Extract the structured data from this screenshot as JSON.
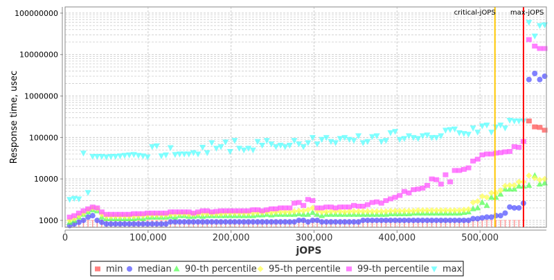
{
  "chart_data": {
    "type": "scatter",
    "title": "",
    "xlabel": "jOPS",
    "ylabel": "Response time, usec",
    "xlim": [
      0,
      580000
    ],
    "ylim": [
      680,
      141000000
    ],
    "yscale": "log",
    "grid": true,
    "legend_placement": "bottom",
    "x_ticks": [
      "0",
      "100,000",
      "200,000",
      "300,000",
      "400,000",
      "500,000"
    ],
    "x_tick_values": [
      0,
      100000,
      200000,
      300000,
      400000,
      500000
    ],
    "y_ticks": [
      "1000",
      "10000",
      "100000",
      "1000000",
      "10000000",
      "100000000"
    ],
    "y_tick_values": [
      1000,
      10000,
      100000,
      1000000,
      10000000,
      100000000
    ],
    "markers": [
      {
        "label": "critical-jOPS",
        "x": 518000,
        "color": "#ffc800"
      },
      {
        "label": "max-jOPS",
        "x": 552400,
        "color": "#ff0000"
      }
    ],
    "x": [
      5524,
      11048,
      16572,
      22096,
      27620,
      33144,
      38668,
      44192,
      49716,
      55240,
      60764,
      66288,
      71812,
      77336,
      82860,
      88384,
      93908,
      99432,
      104956,
      110480,
      116004,
      121528,
      127052,
      132576,
      138100,
      143624,
      149148,
      154672,
      160196,
      165720,
      171244,
      176768,
      182292,
      187816,
      193340,
      198864,
      204388,
      209912,
      215436,
      220960,
      226484,
      232008,
      237532,
      243056,
      248580,
      254104,
      259628,
      265152,
      270676,
      276200,
      281724,
      287248,
      292772,
      298296,
      303820,
      309344,
      314868,
      320392,
      325916,
      331440,
      336964,
      342488,
      348012,
      353536,
      359060,
      364584,
      370108,
      375632,
      381156,
      386680,
      392204,
      397728,
      403252,
      408776,
      414300,
      419824,
      425348,
      430872,
      436396,
      441920,
      447444,
      452968,
      458492,
      464016,
      469540,
      475064,
      480588,
      486112,
      491636,
      497160,
      502684,
      508208,
      513732,
      519256,
      524780,
      530304,
      535828,
      541352,
      546876,
      552400,
      559000,
      566000,
      572000,
      578000
    ],
    "series": [
      {
        "name": "min",
        "color": "#ff5555",
        "shape": "square",
        "values": [
          null,
          null,
          null,
          null,
          null,
          null,
          null,
          null,
          null,
          null,
          null,
          null,
          null,
          null,
          null,
          null,
          null,
          null,
          null,
          null,
          null,
          null,
          null,
          null,
          null,
          null,
          null,
          null,
          null,
          null,
          null,
          null,
          null,
          null,
          null,
          null,
          null,
          null,
          null,
          null,
          null,
          null,
          null,
          null,
          null,
          null,
          null,
          null,
          null,
          null,
          null,
          null,
          null,
          null,
          null,
          null,
          null,
          null,
          null,
          null,
          null,
          null,
          null,
          null,
          null,
          null,
          null,
          null,
          null,
          null,
          null,
          null,
          null,
          null,
          null,
          null,
          null,
          null,
          null,
          null,
          null,
          null,
          null,
          null,
          null,
          null,
          null,
          null,
          null,
          null,
          null,
          null,
          null,
          null,
          null,
          null,
          null,
          null,
          null,
          null,
          250000,
          180000,
          175000,
          150000
        ]
      },
      {
        "name": "median",
        "color": "#5555ff",
        "shape": "circle",
        "values": [
          750,
          820,
          900,
          1000,
          1200,
          1300,
          1000,
          900,
          820,
          820,
          820,
          820,
          820,
          820,
          820,
          820,
          820,
          820,
          820,
          820,
          820,
          820,
          920,
          920,
          920,
          920,
          920,
          920,
          920,
          920,
          920,
          920,
          920,
          920,
          920,
          920,
          920,
          920,
          920,
          920,
          920,
          920,
          920,
          920,
          920,
          920,
          920,
          920,
          920,
          920,
          1000,
          1000,
          920,
          1000,
          1000,
          920,
          920,
          920,
          920,
          920,
          920,
          920,
          920,
          920,
          1000,
          1000,
          1000,
          1000,
          1000,
          1000,
          1000,
          1000,
          1000,
          1000,
          1000,
          1000,
          1000,
          1000,
          1000,
          1000,
          1000,
          1000,
          1000,
          1000,
          1000,
          1000,
          1000,
          1000,
          1100,
          1100,
          1150,
          1200,
          1200,
          1300,
          1300,
          1500,
          2100,
          2000,
          2000,
          2600,
          2500000,
          3500000,
          2500000,
          3000000
        ]
      },
      {
        "name": "90-th percentile",
        "color": "#55ff55",
        "shape": "triangle-up",
        "values": [
          900,
          1000,
          1200,
          1400,
          1600,
          1800,
          1700,
          1200,
          1100,
          1100,
          1100,
          1100,
          1100,
          1100,
          1100,
          1150,
          1100,
          1200,
          1200,
          1200,
          1200,
          1200,
          1250,
          1200,
          1300,
          1300,
          1250,
          1250,
          1300,
          1250,
          1300,
          1300,
          1300,
          1300,
          1300,
          1300,
          1300,
          1300,
          1300,
          1300,
          1300,
          1350,
          1350,
          1400,
          1350,
          1400,
          1400,
          1400,
          1400,
          1400,
          1450,
          1400,
          1400,
          1550,
          1400,
          1300,
          1400,
          1400,
          1400,
          1400,
          1400,
          1400,
          1400,
          1400,
          1400,
          1400,
          1400,
          1400,
          1400,
          1400,
          1450,
          1450,
          1450,
          1450,
          1450,
          1500,
          1500,
          1500,
          1500,
          1500,
          1500,
          1500,
          1500,
          1500,
          1500,
          1500,
          1550,
          1600,
          1900,
          2000,
          2700,
          2300,
          3600,
          3600,
          4300,
          5700,
          5700,
          5700,
          6700,
          6700,
          7000,
          12000,
          7500,
          8000
        ]
      },
      {
        "name": "95-th percentile",
        "color": "#ffff55",
        "shape": "diamond",
        "values": [
          1000,
          1100,
          1300,
          1500,
          1800,
          2000,
          1900,
          1400,
          1250,
          1250,
          1250,
          1250,
          1250,
          1250,
          1250,
          1300,
          1300,
          1350,
          1350,
          1350,
          1350,
          1350,
          1400,
          1400,
          1450,
          1450,
          1400,
          1400,
          1450,
          1450,
          1450,
          1450,
          1450,
          1450,
          1500,
          1500,
          1500,
          1500,
          1500,
          1500,
          1500,
          1550,
          1550,
          1600,
          1550,
          1600,
          1600,
          1600,
          1600,
          1650,
          1700,
          1700,
          1800,
          2000,
          1700,
          1600,
          1600,
          1650,
          1650,
          1650,
          1600,
          1650,
          1650,
          1650,
          1650,
          1650,
          1650,
          1650,
          1650,
          1650,
          1700,
          1700,
          1700,
          1700,
          1700,
          1700,
          1750,
          1750,
          1750,
          1750,
          1750,
          1750,
          1750,
          1750,
          1750,
          1750,
          1800,
          1850,
          2700,
          2900,
          3800,
          3600,
          4600,
          4600,
          5300,
          6800,
          7000,
          7000,
          8500,
          8500,
          12000,
          10500,
          9500,
          10000
        ]
      },
      {
        "name": "99-th percentile",
        "color": "#ff55ff",
        "shape": "square",
        "values": [
          1200,
          1300,
          1500,
          1700,
          1900,
          2100,
          2000,
          1600,
          1400,
          1400,
          1400,
          1400,
          1400,
          1400,
          1450,
          1450,
          1450,
          1500,
          1500,
          1500,
          1500,
          1500,
          1600,
          1600,
          1600,
          1600,
          1600,
          1500,
          1600,
          1700,
          1700,
          1600,
          1650,
          1700,
          1700,
          1700,
          1700,
          1700,
          1700,
          1700,
          1800,
          1800,
          1700,
          1800,
          1900,
          1900,
          2000,
          2000,
          2000,
          2600,
          2700,
          2300,
          3200,
          3000,
          2000,
          2000,
          2100,
          2100,
          2000,
          2100,
          2100,
          2100,
          2300,
          2200,
          2200,
          2400,
          2700,
          2800,
          2600,
          3000,
          3300,
          3600,
          4000,
          5000,
          4600,
          5500,
          5700,
          6000,
          7000,
          10000,
          9600,
          7500,
          12600,
          8500,
          16000,
          16000,
          17000,
          18500,
          27000,
          30000,
          38000,
          40000,
          40000,
          42000,
          43000,
          45000,
          46000,
          60000,
          58000,
          80000,
          23000000,
          16000000,
          14000000,
          14000000
        ]
      },
      {
        "name": "max",
        "color": "#55ffff",
        "shape": "triangle-down",
        "values": [
          3200,
          3400,
          3300,
          42000,
          4700,
          35000,
          35000,
          35000,
          34000,
          35000,
          35000,
          36000,
          37000,
          38000,
          39000,
          37000,
          36000,
          34000,
          60000,
          63000,
          36000,
          38000,
          57000,
          39000,
          40000,
          40000,
          40000,
          43000,
          40000,
          58000,
          43000,
          75000,
          55000,
          60000,
          78000,
          46000,
          85000,
          55000,
          50000,
          55000,
          50000,
          80000,
          65000,
          85000,
          70000,
          60000,
          65000,
          60000,
          65000,
          85000,
          70000,
          60000,
          75000,
          100000,
          70000,
          90000,
          100000,
          80000,
          75000,
          95000,
          100000,
          90000,
          85000,
          110000,
          75000,
          80000,
          105000,
          110000,
          80000,
          85000,
          130000,
          140000,
          90000,
          95000,
          110000,
          100000,
          95000,
          110000,
          115000,
          100000,
          100000,
          110000,
          150000,
          155000,
          160000,
          130000,
          125000,
          120000,
          170000,
          135000,
          190000,
          200000,
          135000,
          180000,
          200000,
          170000,
          260000,
          250000,
          250000,
          250000,
          60000000,
          28000000,
          50000000,
          52000000
        ]
      }
    ]
  }
}
